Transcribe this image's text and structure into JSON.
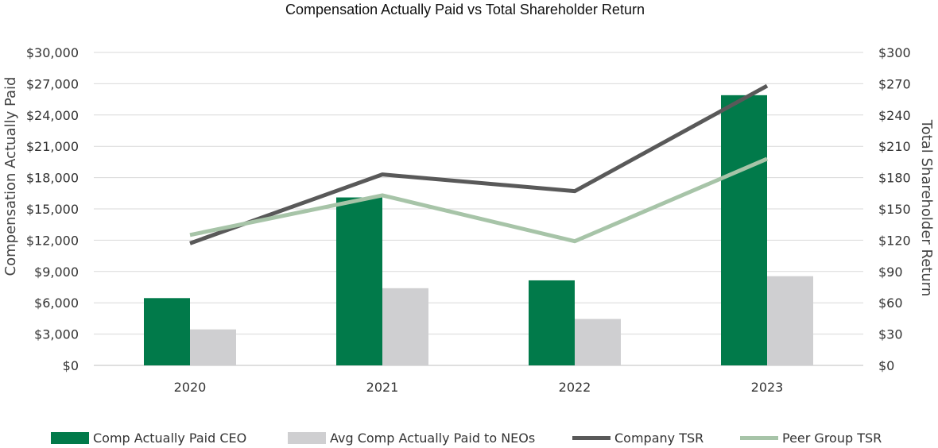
{
  "chart_data": {
    "type": "bar",
    "title": "Compensation Actually Paid vs Total Shareholder Return",
    "categories": [
      "2020",
      "2021",
      "2022",
      "2023"
    ],
    "ylabel": "Compensation Actually Paid",
    "ylabel_right": "Total Shareholder Return",
    "ylim": [
      0,
      30000
    ],
    "ylim_right": [
      0,
      300
    ],
    "yticks": [
      "$0",
      "$3,000",
      "$6,000",
      "$9,000",
      "$12,000",
      "$15,000",
      "$18,000",
      "$21,000",
      "$24,000",
      "$27,000",
      "$30,000"
    ],
    "yticks_right": [
      "$0",
      "$30",
      "$60",
      "$90",
      "$120",
      "$150",
      "$180",
      "$210",
      "$240",
      "$270",
      "$300"
    ],
    "grid": true,
    "legend_position": "bottom",
    "series": [
      {
        "name": "Comp Actually Paid CEO",
        "type": "bar",
        "axis": "left",
        "color": "#017A4A",
        "values": [
          6450,
          16100,
          8150,
          25900
        ]
      },
      {
        "name": "Avg Comp Actually Paid to NEOs",
        "type": "bar",
        "axis": "left",
        "color": "#CFCFD1",
        "values": [
          3450,
          7400,
          4450,
          8550
        ]
      },
      {
        "name": "Company TSR",
        "type": "line",
        "axis": "right",
        "color": "#595959",
        "values": [
          117,
          183,
          167,
          268
        ]
      },
      {
        "name": "Peer Group TSR",
        "type": "line",
        "axis": "right",
        "color": "#A7C4A8",
        "values": [
          125,
          163,
          119,
          198
        ]
      }
    ]
  }
}
